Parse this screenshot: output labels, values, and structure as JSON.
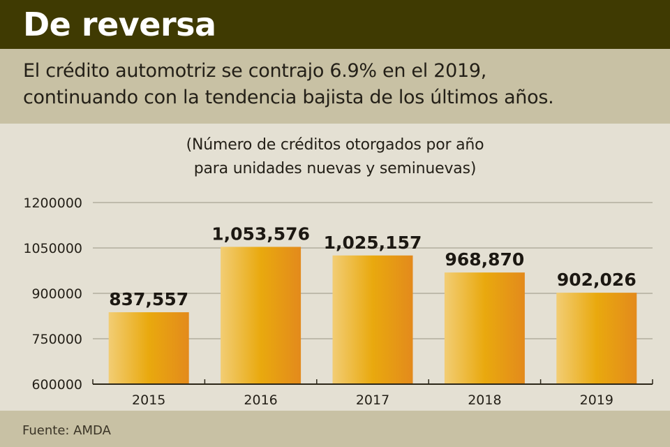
{
  "header": {
    "title": "De reversa",
    "subtitle_lines": [
      "El crédito automotriz se contrajo 6.9% en el 2019,",
      "continuando con la tendencia bajista de los últimos años."
    ]
  },
  "footer": {
    "source": "Fuente: AMDA"
  },
  "colors": {
    "title_bg": "#3f3a02",
    "band_bg": "#c8c1a4",
    "chart_bg": "#e4e0d3",
    "bar_light": "#f2cd74",
    "bar_mid": "#e9a90e",
    "bar_dark": "#e38a1c"
  },
  "chart_data": {
    "type": "bar",
    "title": "",
    "subtitle_lines": [
      "(Número de créditos otorgados por año",
      "para unidades nuevas y seminuevas)"
    ],
    "categories": [
      "2015",
      "2016",
      "2017",
      "2018",
      "2019"
    ],
    "values": [
      837557,
      1053576,
      1025157,
      968870,
      902026
    ],
    "data_labels": [
      "837,557",
      "1,053,576",
      "1,025,157",
      "968,870",
      "902,026"
    ],
    "xlabel": "",
    "ylabel": "",
    "ylim": [
      600000,
      1200000
    ],
    "yticks": [
      600000,
      750000,
      900000,
      1050000,
      1200000
    ],
    "ytick_labels": [
      "600000",
      "750000",
      "900000",
      "1050000",
      "1200000"
    ],
    "grid": true,
    "legend": "none"
  }
}
